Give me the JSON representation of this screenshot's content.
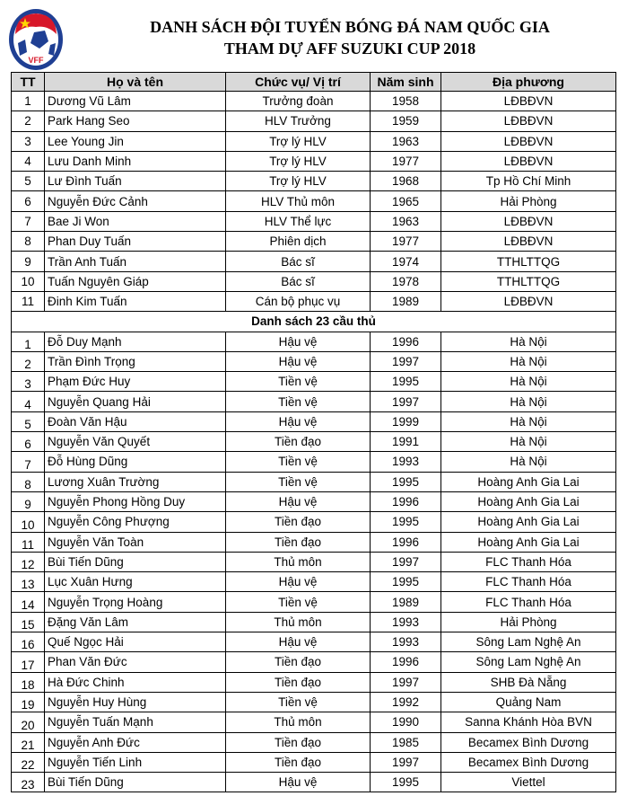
{
  "logo": {
    "text": "VFF",
    "colors": {
      "red": "#d7182a",
      "blue": "#1f3f93",
      "star": "#ffd700"
    }
  },
  "title": {
    "line1": "DANH SÁCH ĐỘI TUYỂN BÓNG ĐÁ NAM QUỐC GIA",
    "line2": "THAM DỰ AFF SUZUKI CUP 2018"
  },
  "table": {
    "headers": [
      "TT",
      "Họ và tên",
      "Chức vụ/ Vị trí",
      "Năm sinh",
      "Địa phương"
    ],
    "staff": [
      [
        "1",
        "Dương Vũ Lâm",
        "Trưởng đoàn",
        "1958",
        "LĐBĐVN"
      ],
      [
        "2",
        "Park Hang Seo",
        "HLV Trưởng",
        "1959",
        "LĐBĐVN"
      ],
      [
        "3",
        "Lee Young Jin",
        "Trợ lý HLV",
        "1963",
        "LĐBĐVN"
      ],
      [
        "4",
        "Lưu Danh Minh",
        "Trợ lý HLV",
        "1977",
        "LĐBĐVN"
      ],
      [
        "5",
        "Lư Đình Tuấn",
        "Trợ lý HLV",
        "1968",
        "Tp Hồ Chí Minh"
      ],
      [
        "6",
        "Nguyễn Đức Cảnh",
        "HLV Thủ môn",
        "1965",
        "Hải Phòng"
      ],
      [
        "7",
        "Bae Ji Won",
        "HLV Thể lực",
        "1963",
        "LĐBĐVN"
      ],
      [
        "8",
        "Phan Duy Tuấn",
        "Phiên dịch",
        "1977",
        "LĐBĐVN"
      ],
      [
        "9",
        "Trần Anh Tuấn",
        "Bác sĩ",
        "1974",
        "TTHLTTQG"
      ],
      [
        "10",
        "Tuấn Nguyên Giáp",
        "Bác sĩ",
        "1978",
        "TTHLTTQG"
      ],
      [
        "11",
        "Đinh Kim Tuấn",
        "Cán bộ phục vụ",
        "1989",
        "LĐBĐVN"
      ]
    ],
    "section_label": "Danh sách 23 cầu thủ",
    "players": [
      [
        "1",
        "Đỗ Duy Mạnh",
        "Hậu vệ",
        "1996",
        "Hà Nội"
      ],
      [
        "2",
        "Trần Đình Trọng",
        "Hậu vệ",
        "1997",
        "Hà Nội"
      ],
      [
        "3",
        "Phạm Đức Huy",
        "Tiền vệ",
        "1995",
        "Hà Nội"
      ],
      [
        "4",
        "Nguyễn Quang Hải",
        "Tiền vệ",
        "1997",
        "Hà Nội"
      ],
      [
        "5",
        "Đoàn Văn Hậu",
        "Hậu vệ",
        "1999",
        "Hà Nội"
      ],
      [
        "6",
        "Nguyễn Văn Quyết",
        "Tiền đạo",
        "1991",
        "Hà Nội"
      ],
      [
        "7",
        "Đỗ Hùng Dũng",
        "Tiền vệ",
        "1993",
        "Hà Nội"
      ],
      [
        "8",
        "Lương Xuân Trường",
        "Tiền vệ",
        "1995",
        "Hoàng Anh Gia Lai"
      ],
      [
        "9",
        "Nguyễn Phong Hồng Duy",
        "Hậu vệ",
        "1996",
        "Hoàng Anh Gia Lai"
      ],
      [
        "10",
        "Nguyễn Công Phượng",
        "Tiền đạo",
        "1995",
        "Hoàng Anh Gia Lai"
      ],
      [
        "11",
        "Nguyễn Văn Toàn",
        "Tiền đạo",
        "1996",
        "Hoàng Anh Gia Lai"
      ],
      [
        "12",
        "Bùi Tiến Dũng",
        "Thủ môn",
        "1997",
        "FLC Thanh Hóa"
      ],
      [
        "13",
        "Lục Xuân Hưng",
        "Hậu vệ",
        "1995",
        "FLC Thanh Hóa"
      ],
      [
        "14",
        "Nguyễn Trọng Hoàng",
        "Tiền vệ",
        "1989",
        "FLC Thanh Hóa"
      ],
      [
        "15",
        "Đặng Văn Lâm",
        "Thủ môn",
        "1993",
        "Hải Phòng"
      ],
      [
        "16",
        "Quế Ngọc Hải",
        "Hậu vệ",
        "1993",
        "Sông Lam Nghệ An"
      ],
      [
        "17",
        "Phan Văn Đức",
        "Tiền đạo",
        "1996",
        "Sông Lam Nghệ An"
      ],
      [
        "18",
        "Hà Đức Chinh",
        "Tiền đạo",
        "1997",
        "SHB Đà Nẵng"
      ],
      [
        "19",
        "Nguyễn Huy Hùng",
        "Tiền vệ",
        "1992",
        "Quảng Nam"
      ],
      [
        "20",
        "Nguyễn Tuấn Mạnh",
        "Thủ môn",
        "1990",
        "Sanna Khánh Hòa BVN"
      ],
      [
        "21",
        "Nguyễn Anh Đức",
        "Tiền đạo",
        "1985",
        "Becamex Bình Dương"
      ],
      [
        "22",
        "Nguyễn Tiến Linh",
        "Tiền đạo",
        "1997",
        "Becamex Bình Dương"
      ],
      [
        "23",
        "Bùi Tiến Dũng",
        "Hậu vệ",
        "1995",
        "Viettel"
      ]
    ]
  }
}
